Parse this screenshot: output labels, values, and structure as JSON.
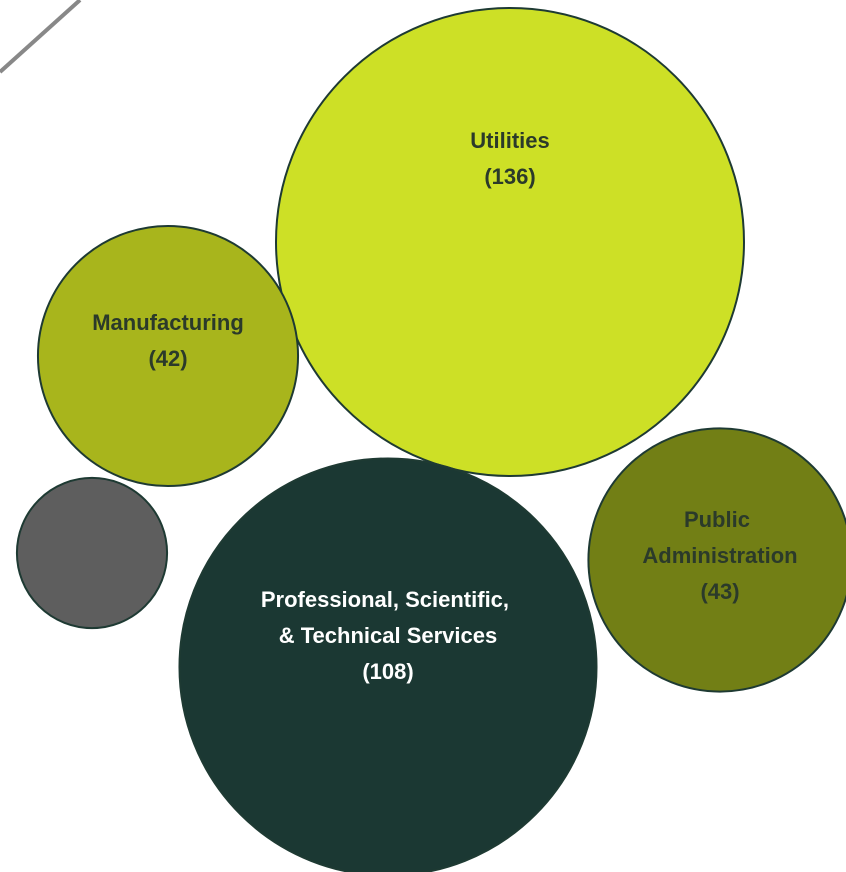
{
  "chart_data": {
    "type": "bubble",
    "categories": [
      "Utilities",
      "Manufacturing",
      null,
      "Professional, Scientific, & Technical Services",
      "Public Administration"
    ],
    "values": [
      136,
      42,
      14,
      108,
      43
    ],
    "value_labels": [
      "(136)",
      "(42)",
      null,
      "(108)",
      "(43)"
    ],
    "colors": [
      "#cde026",
      "#a8b51c",
      "#5e5e5e",
      "#1b3833",
      "#727f15"
    ]
  }
}
